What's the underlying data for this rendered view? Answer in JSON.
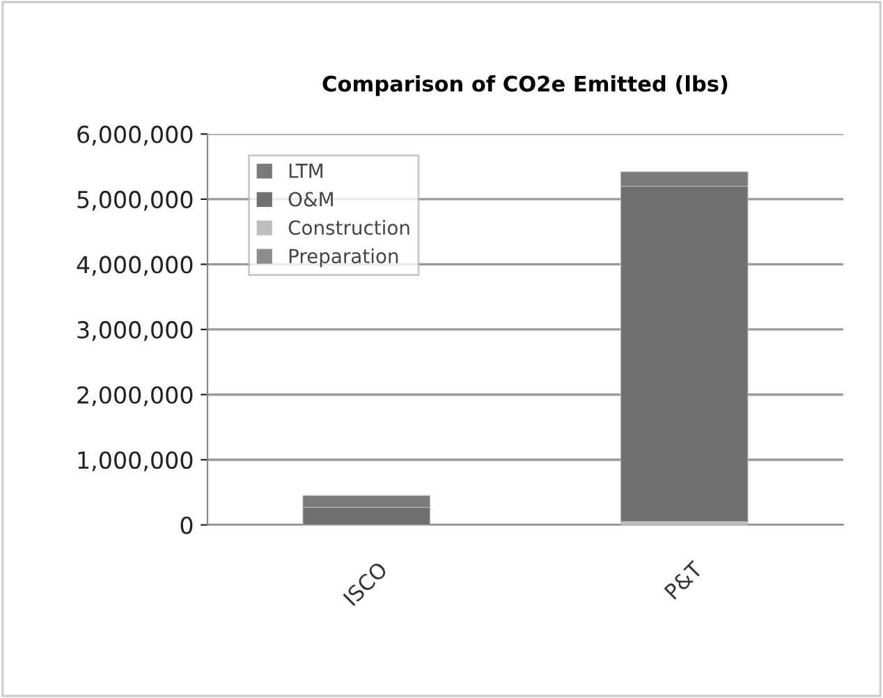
{
  "chart_data": {
    "type": "bar",
    "title": "Comparison of CO2e Emitted (lbs)",
    "categories": [
      "ISCO",
      "P&T"
    ],
    "stacked": true,
    "series": [
      {
        "name": "Preparation",
        "color": "#8c8c8c",
        "values": [
          null,
          null
        ]
      },
      {
        "name": "Construction",
        "color": "#bdbdbd",
        "values": [
          null,
          50000
        ]
      },
      {
        "name": "O&M",
        "color": "#707070",
        "values": [
          270000,
          5150000
        ]
      },
      {
        "name": "LTM",
        "color": "#7a7a7a",
        "values": [
          180000,
          220000
        ]
      }
    ],
    "ylim": [
      0,
      6000000
    ],
    "yticks": [
      {
        "value": 0,
        "label": "0"
      },
      {
        "value": 1000000,
        "label": "1,000,000"
      },
      {
        "value": 2000000,
        "label": "2,000,000"
      },
      {
        "value": 3000000,
        "label": "3,000,000"
      },
      {
        "value": 4000000,
        "label": "4,000,000"
      },
      {
        "value": 5000000,
        "label": "5,000,000"
      },
      {
        "value": 6000000,
        "label": "6,000,000"
      }
    ],
    "grid": "y",
    "legend": "top left"
  }
}
